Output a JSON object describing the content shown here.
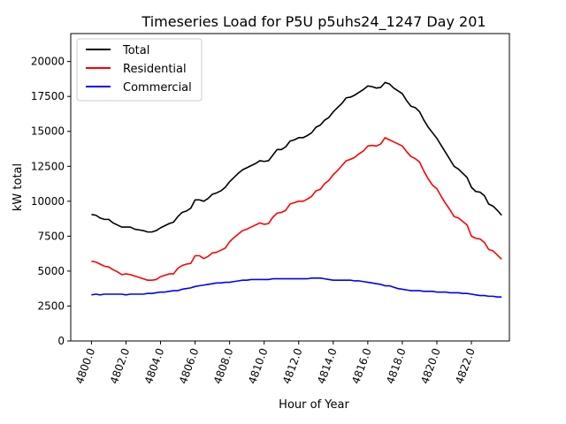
{
  "chart_data": {
    "type": "line",
    "title": "Timeseries Load for P5U p5uhs24_1247  Day 201",
    "xlabel": "Hour of Year",
    "ylabel": "kW total",
    "xlim": [
      4798.8,
      4824.2
    ],
    "ylim": [
      0,
      22000
    ],
    "xticks": [
      4800.0,
      4802.0,
      4804.0,
      4806.0,
      4808.0,
      4810.0,
      4812.0,
      4814.0,
      4816.0,
      4818.0,
      4820.0,
      4822.0
    ],
    "xtick_labels": [
      "4800.0",
      "4802.0",
      "4804.0",
      "4806.0",
      "4808.0",
      "4810.0",
      "4812.0",
      "4814.0",
      "4816.0",
      "4818.0",
      "4820.0",
      "4822.0"
    ],
    "yticks": [
      0,
      2500,
      5000,
      7500,
      10000,
      12500,
      15000,
      17500,
      20000
    ],
    "ytick_labels": [
      "0",
      "2500",
      "5000",
      "7500",
      "10000",
      "12500",
      "15000",
      "17500",
      "20000"
    ],
    "legend_location": "top-left",
    "x_start": 4800.0,
    "x_step": 0.25,
    "series": [
      {
        "name": "Total",
        "color": "#000000",
        "values": [
          9050,
          9000,
          8800,
          8700,
          8700,
          8450,
          8300,
          8150,
          8150,
          8150,
          8000,
          7950,
          7900,
          7800,
          7800,
          7900,
          8100,
          8250,
          8400,
          8500,
          8900,
          9200,
          9300,
          9500,
          10100,
          10100,
          10000,
          10200,
          10500,
          10600,
          10750,
          11000,
          11400,
          11700,
          12000,
          12250,
          12400,
          12550,
          12700,
          12900,
          12850,
          12900,
          13300,
          13700,
          13700,
          13900,
          14300,
          14400,
          14550,
          14550,
          14700,
          14900,
          15300,
          15450,
          15800,
          16000,
          16400,
          16700,
          17000,
          17400,
          17450,
          17600,
          17800,
          18000,
          18250,
          18200,
          18100,
          18150,
          18500,
          18400,
          18100,
          17900,
          17700,
          17200,
          16800,
          16700,
          16400,
          15800,
          15300,
          14900,
          14500,
          14000,
          13500,
          13000,
          12500,
          12300,
          12000,
          11700,
          11000,
          10700,
          10650,
          10400,
          9800,
          9650,
          9350,
          9000
        ]
      },
      {
        "name": "Residential",
        "color": "#ff0000",
        "values": [
          5700,
          5650,
          5500,
          5350,
          5300,
          5100,
          4950,
          4750,
          4800,
          4750,
          4650,
          4550,
          4450,
          4350,
          4350,
          4400,
          4600,
          4700,
          4800,
          4800,
          5200,
          5400,
          5500,
          5550,
          6100,
          6100,
          5900,
          6050,
          6300,
          6350,
          6500,
          6650,
          7100,
          7400,
          7650,
          7900,
          8000,
          8150,
          8300,
          8450,
          8350,
          8400,
          8850,
          9150,
          9200,
          9350,
          9800,
          9900,
          10000,
          10000,
          10150,
          10350,
          10750,
          10850,
          11250,
          11500,
          11900,
          12200,
          12550,
          12900,
          13000,
          13150,
          13400,
          13600,
          13950,
          14000,
          13950,
          14100,
          14550,
          14400,
          14250,
          14100,
          13950,
          13550,
          13200,
          13050,
          12800,
          12150,
          11600,
          11150,
          10900,
          10350,
          9850,
          9400,
          8900,
          8800,
          8550,
          8300,
          7500,
          7350,
          7300,
          7050,
          6550,
          6450,
          6150,
          5850
        ]
      },
      {
        "name": "Commercial",
        "color": "#0000ff",
        "values": [
          3300,
          3350,
          3300,
          3350,
          3350,
          3350,
          3350,
          3350,
          3300,
          3350,
          3350,
          3350,
          3350,
          3400,
          3400,
          3450,
          3500,
          3500,
          3550,
          3600,
          3600,
          3700,
          3750,
          3800,
          3900,
          3950,
          4000,
          4050,
          4100,
          4150,
          4150,
          4200,
          4200,
          4250,
          4300,
          4350,
          4350,
          4400,
          4400,
          4400,
          4400,
          4400,
          4450,
          4450,
          4450,
          4450,
          4450,
          4450,
          4450,
          4450,
          4450,
          4500,
          4500,
          4500,
          4450,
          4400,
          4350,
          4350,
          4350,
          4350,
          4350,
          4300,
          4300,
          4250,
          4200,
          4150,
          4100,
          4050,
          3950,
          3950,
          3850,
          3750,
          3700,
          3650,
          3600,
          3600,
          3600,
          3550,
          3550,
          3550,
          3500,
          3500,
          3500,
          3450,
          3450,
          3450,
          3400,
          3400,
          3350,
          3300,
          3250,
          3250,
          3200,
          3200,
          3150,
          3150
        ]
      }
    ]
  }
}
